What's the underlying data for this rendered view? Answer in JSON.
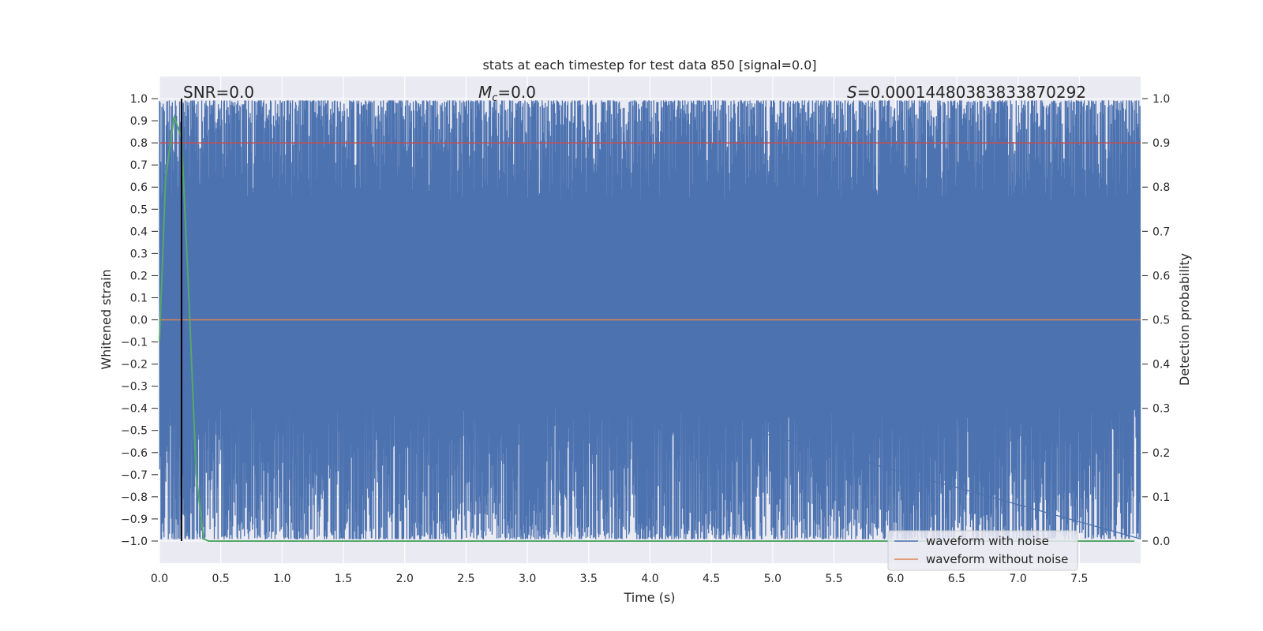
{
  "chart_data": {
    "type": "line",
    "title": "stats at each timestep for test data 850 [signal=0.0]",
    "xlabel": "Time (s)",
    "ylabel": "Whitened strain",
    "y2label": "Detection probability",
    "xlim": [
      0.0,
      8.0
    ],
    "ylim": [
      -1.1,
      1.1
    ],
    "y2lim": [
      -0.05,
      1.05
    ],
    "x_ticks": [
      "0.0",
      "0.5",
      "1.0",
      "1.5",
      "2.0",
      "2.5",
      "3.0",
      "3.5",
      "4.0",
      "4.5",
      "5.0",
      "5.5",
      "6.0",
      "6.5",
      "7.0",
      "7.5"
    ],
    "y_ticks": [
      "1.0",
      "0.9",
      "0.8",
      "0.7",
      "0.6",
      "0.5",
      "0.4",
      "0.3",
      "0.2",
      "0.1",
      "0.0",
      "−0.1",
      "−0.2",
      "−0.3",
      "−0.4",
      "−0.5",
      "−0.6",
      "−0.7",
      "−0.8",
      "−0.9",
      "−1.0"
    ],
    "y2_ticks": [
      "1.0",
      "0.9",
      "0.8",
      "0.7",
      "0.6",
      "0.5",
      "0.4",
      "0.3",
      "0.2",
      "0.1",
      "0.0"
    ],
    "grid": true,
    "legend_position": "lower-right",
    "background_color": "#eaeaf2",
    "annotations": {
      "snr": "SNR=0.0",
      "mc_symbol": "M",
      "mc_sub": "c",
      "mc_value": "=0.0",
      "s_symbol": "S",
      "s_value": "=0.00014480383833870292"
    },
    "threshold_probability": 0.9,
    "marker_time": 0.18,
    "series": [
      {
        "name": "waveform with noise",
        "color": "#4c72b0",
        "description_range": [
          -1.0,
          1.0
        ],
        "sample_count": 1600,
        "x_range": [
          0.0,
          7.995
        ]
      },
      {
        "name": "waveform without noise",
        "color": "#dd8452",
        "constant_value": 0.0
      },
      {
        "name": "",
        "color": "#55a868",
        "axis": "right",
        "x": [
          0.0,
          0.05,
          0.12,
          0.18,
          0.24,
          0.3,
          0.36,
          0.4,
          1.0,
          2.0,
          3.0,
          4.0,
          5.0,
          6.0,
          7.0,
          7.95
        ],
        "values": [
          0.45,
          0.82,
          0.96,
          0.91,
          0.55,
          0.15,
          0.005,
          0.0,
          0.0,
          0.0,
          0.0,
          0.0,
          0.0,
          0.0,
          0.0,
          0.0
        ]
      }
    ]
  }
}
